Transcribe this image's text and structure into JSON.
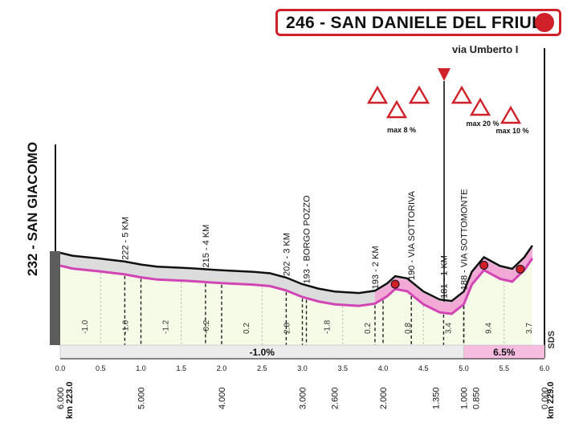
{
  "chart_data": {
    "type": "area",
    "title": "246 - SAN DANIELE DEL FRIULI",
    "subtitle": "via Umberto I",
    "start_label": "232 - SAN GIACOMO",
    "logo": "SDS",
    "xlim": [
      0,
      6.0
    ],
    "x_ticks": [
      "0.0",
      "0.5",
      "1.0",
      "1.5",
      "2.0",
      "2.5",
      "3.0",
      "3.5",
      "4.0",
      "4.5",
      "5.0",
      "5.5",
      "6.0"
    ],
    "remaining_km_labels": [
      {
        "km": 0.0,
        "label": "6.000"
      },
      {
        "km": 1.0,
        "label": "5.000"
      },
      {
        "km": 2.0,
        "label": "4.000"
      },
      {
        "km": 3.0,
        "label": "3.000"
      },
      {
        "km": 3.4,
        "label": "2.600"
      },
      {
        "km": 4.0,
        "label": "2.000"
      },
      {
        "km": 4.65,
        "label": "1.350"
      },
      {
        "km": 5.0,
        "label": "1.000"
      },
      {
        "km": 5.15,
        "label": "0.850"
      },
      {
        "km": 6.0,
        "label": "0.000"
      }
    ],
    "start_km": "km 223.0",
    "end_km": "km 229.0",
    "profile": [
      {
        "x": 0.0,
        "y": 0.0
      },
      {
        "x": 0.15,
        "y": -0.4
      },
      {
        "x": 0.5,
        "y": -0.8
      },
      {
        "x": 0.8,
        "y": -1.2
      },
      {
        "x": 1.0,
        "y": -1.6
      },
      {
        "x": 1.2,
        "y": -1.9
      },
      {
        "x": 1.6,
        "y": -2.1
      },
      {
        "x": 2.0,
        "y": -2.4
      },
      {
        "x": 2.4,
        "y": -2.6
      },
      {
        "x": 2.6,
        "y": -2.8
      },
      {
        "x": 2.8,
        "y": -3.4
      },
      {
        "x": 3.0,
        "y": -4.3
      },
      {
        "x": 3.2,
        "y": -4.9
      },
      {
        "x": 3.4,
        "y": -5.3
      },
      {
        "x": 3.7,
        "y": -5.5
      },
      {
        "x": 3.9,
        "y": -5.2
      },
      {
        "x": 4.05,
        "y": -4.2
      },
      {
        "x": 4.15,
        "y": -3.2
      },
      {
        "x": 4.3,
        "y": -3.5
      },
      {
        "x": 4.5,
        "y": -5.3
      },
      {
        "x": 4.7,
        "y": -6.4
      },
      {
        "x": 4.85,
        "y": -6.6
      },
      {
        "x": 5.0,
        "y": -5.3
      },
      {
        "x": 5.1,
        "y": -2.6
      },
      {
        "x": 5.25,
        "y": -0.6
      },
      {
        "x": 5.45,
        "y": -1.8
      },
      {
        "x": 5.6,
        "y": -2.2
      },
      {
        "x": 5.75,
        "y": -0.6
      },
      {
        "x": 5.85,
        "y": 1.0
      }
    ],
    "segment_gradients": [
      {
        "km": 0.3,
        "value": "-1.0"
      },
      {
        "km": 0.8,
        "value": "-1.0"
      },
      {
        "km": 1.3,
        "value": "-1.2"
      },
      {
        "km": 1.8,
        "value": "-0.2"
      },
      {
        "km": 2.3,
        "value": "0.2"
      },
      {
        "km": 2.8,
        "value": "2.8"
      },
      {
        "km": 3.3,
        "value": "-1.8"
      },
      {
        "km": 3.8,
        "value": "0.2"
      },
      {
        "km": 4.3,
        "value": "0.8"
      },
      {
        "km": 4.8,
        "value": "3.4"
      },
      {
        "km": 5.3,
        "value": "9.4"
      },
      {
        "km": 5.8,
        "value": "3.7"
      }
    ],
    "gradient_bands": [
      {
        "from": 0.0,
        "to": 5.0,
        "label": "-1.0%",
        "color": "#ececec"
      },
      {
        "from": 5.0,
        "to": 6.0,
        "label": "6.5%",
        "color": "#f7bde0"
      }
    ],
    "landmarks": [
      {
        "km": 0.8,
        "label": "222 - 5 KM"
      },
      {
        "km": 1.8,
        "label": "215 - 4 KM"
      },
      {
        "km": 2.8,
        "label": "202 - 3 KM"
      },
      {
        "km": 3.05,
        "label": "193 - BORGO POZZO"
      },
      {
        "km": 3.9,
        "label": "193 - 2 KM"
      },
      {
        "km": 4.35,
        "label": "190 - VIA SOTTORIVA"
      },
      {
        "km": 4.75,
        "label": "181 - 1 KM"
      },
      {
        "km": 5.0,
        "label": "188 - VIA SOTTOMONTE"
      }
    ],
    "steep_markers": [
      {
        "km": 4.15,
        "label": "max 8 %"
      },
      {
        "km": 5.25,
        "label": "max 20 %"
      },
      {
        "km": 5.7,
        "label": "max 10 %"
      }
    ],
    "signs": [
      {
        "type": "narrow-road",
        "label_x": 468
      },
      {
        "type": "steep-climb",
        "label_x": 492
      },
      {
        "type": "turn-left",
        "label_x": 522
      },
      {
        "type": "flamme-rouge",
        "label_x": 553
      },
      {
        "type": "turn-left",
        "label_x": 575
      },
      {
        "type": "steep-climb",
        "label_x": 598
      },
      {
        "type": "steep-climb",
        "label_x": 636
      }
    ]
  }
}
